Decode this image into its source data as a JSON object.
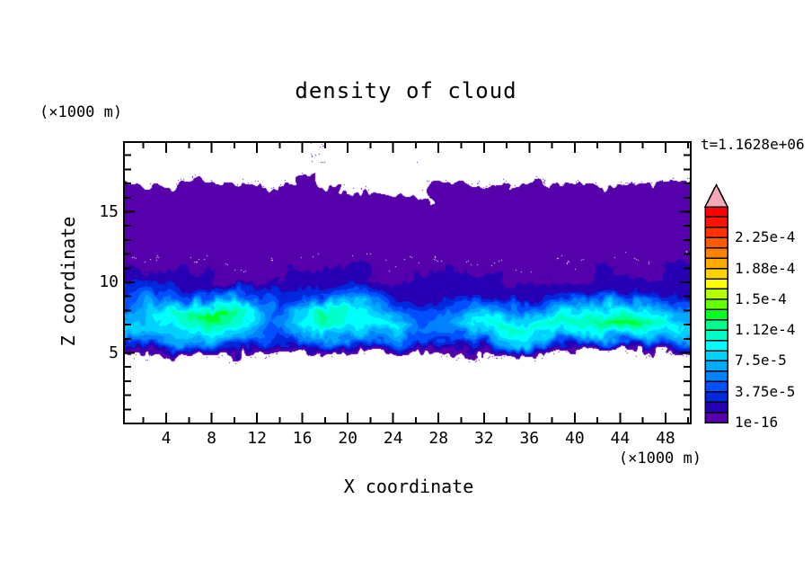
{
  "title": "density of cloud",
  "time_label": "t=1.1628e+06",
  "axes": {
    "x_label": "X coordinate",
    "x_unit": "(×1000 m)",
    "z_label": "Z coordinate",
    "z_unit": "(×1000 m)",
    "x_major_ticks": [
      4,
      8,
      12,
      16,
      20,
      24,
      28,
      32,
      36,
      40,
      44,
      48
    ],
    "x_minor_ticks": [
      2,
      6,
      10,
      14,
      18,
      22,
      26,
      30,
      34,
      38,
      42,
      46,
      50
    ],
    "z_major_ticks": [
      5,
      10,
      15
    ],
    "z_minor_ticks": [
      1,
      2,
      3,
      4,
      6,
      7,
      8,
      9,
      11,
      12,
      13,
      14,
      16,
      17,
      18,
      19
    ]
  },
  "colorbar": {
    "tick_labels_top_to_bottom": [
      "2.25e-4",
      "1.88e-4",
      "1.5e-4",
      "1.12e-4",
      "7.5e-5",
      "3.75e-5",
      "1e-16"
    ],
    "cells_per_label": 3,
    "arrow_color": "#F5A9B8",
    "cells_bottom_to_top": [
      "#5500AA",
      "#2800B4",
      "#0028DC",
      "#0050FF",
      "#0082FF",
      "#00AAFF",
      "#00D2FF",
      "#00FFFF",
      "#00FFC8",
      "#00FF8C",
      "#00FF28",
      "#64FF00",
      "#B4FF00",
      "#FFFF00",
      "#FFD200",
      "#FFAA00",
      "#FF8200",
      "#FF5A00",
      "#FF3200",
      "#FF1400",
      "#FF0000"
    ]
  },
  "chart_data": {
    "type": "heatmap",
    "title": "density of cloud",
    "xlabel": "X coordinate (×1000 m)",
    "ylabel": "Z coordinate (×1000 m)",
    "time_label": "t=1.1628e+06",
    "x_range": [
      0.2,
      50.3
    ],
    "z_range": [
      0,
      20
    ],
    "contour_min": "1e-16",
    "contour_step": 1.25e-05,
    "colorbar_max": 0.0002625,
    "field_palette_level0_to_14": [
      "#FFFFFF",
      "#5500AA",
      "#2800B4",
      "#0028DC",
      "#0050FF",
      "#0082FF",
      "#00AAFF",
      "#00D2FF",
      "#00FFFF",
      "#00FFC8",
      "#00FF8C",
      "#00FF28",
      "#64FF00",
      "#B4FF00",
      "#FFFF00"
    ],
    "value_grid": {
      "encoding": "hex digit per cell = contour level index (0 = clear air below 1e-16)",
      "x_start": 0,
      "x_step": 2,
      "z_start": 19,
      "z_step": -1,
      "rows_top_to_bottom": [
        "00000000010000000000000000",
        "00000000110001000000000000",
        "11111111111000111111111111",
        "11111111111111111111111111",
        "11111111111111111111111111",
        "11111111111111111111111111",
        "11111111111111111111111111",
        "11111111111111111111111111",
        "22222112222212222212122122",
        "34322222223222222222222222",
        "46555643455432233333333333",
        "579BCA847B8754456677778766",
        "878999758A9985689A9AABCA98",
        "45666654567654456777788766",
        "11111111011110111111111111",
        "00000000000000000000000000",
        "00000000000000000000000000"
      ]
    }
  }
}
